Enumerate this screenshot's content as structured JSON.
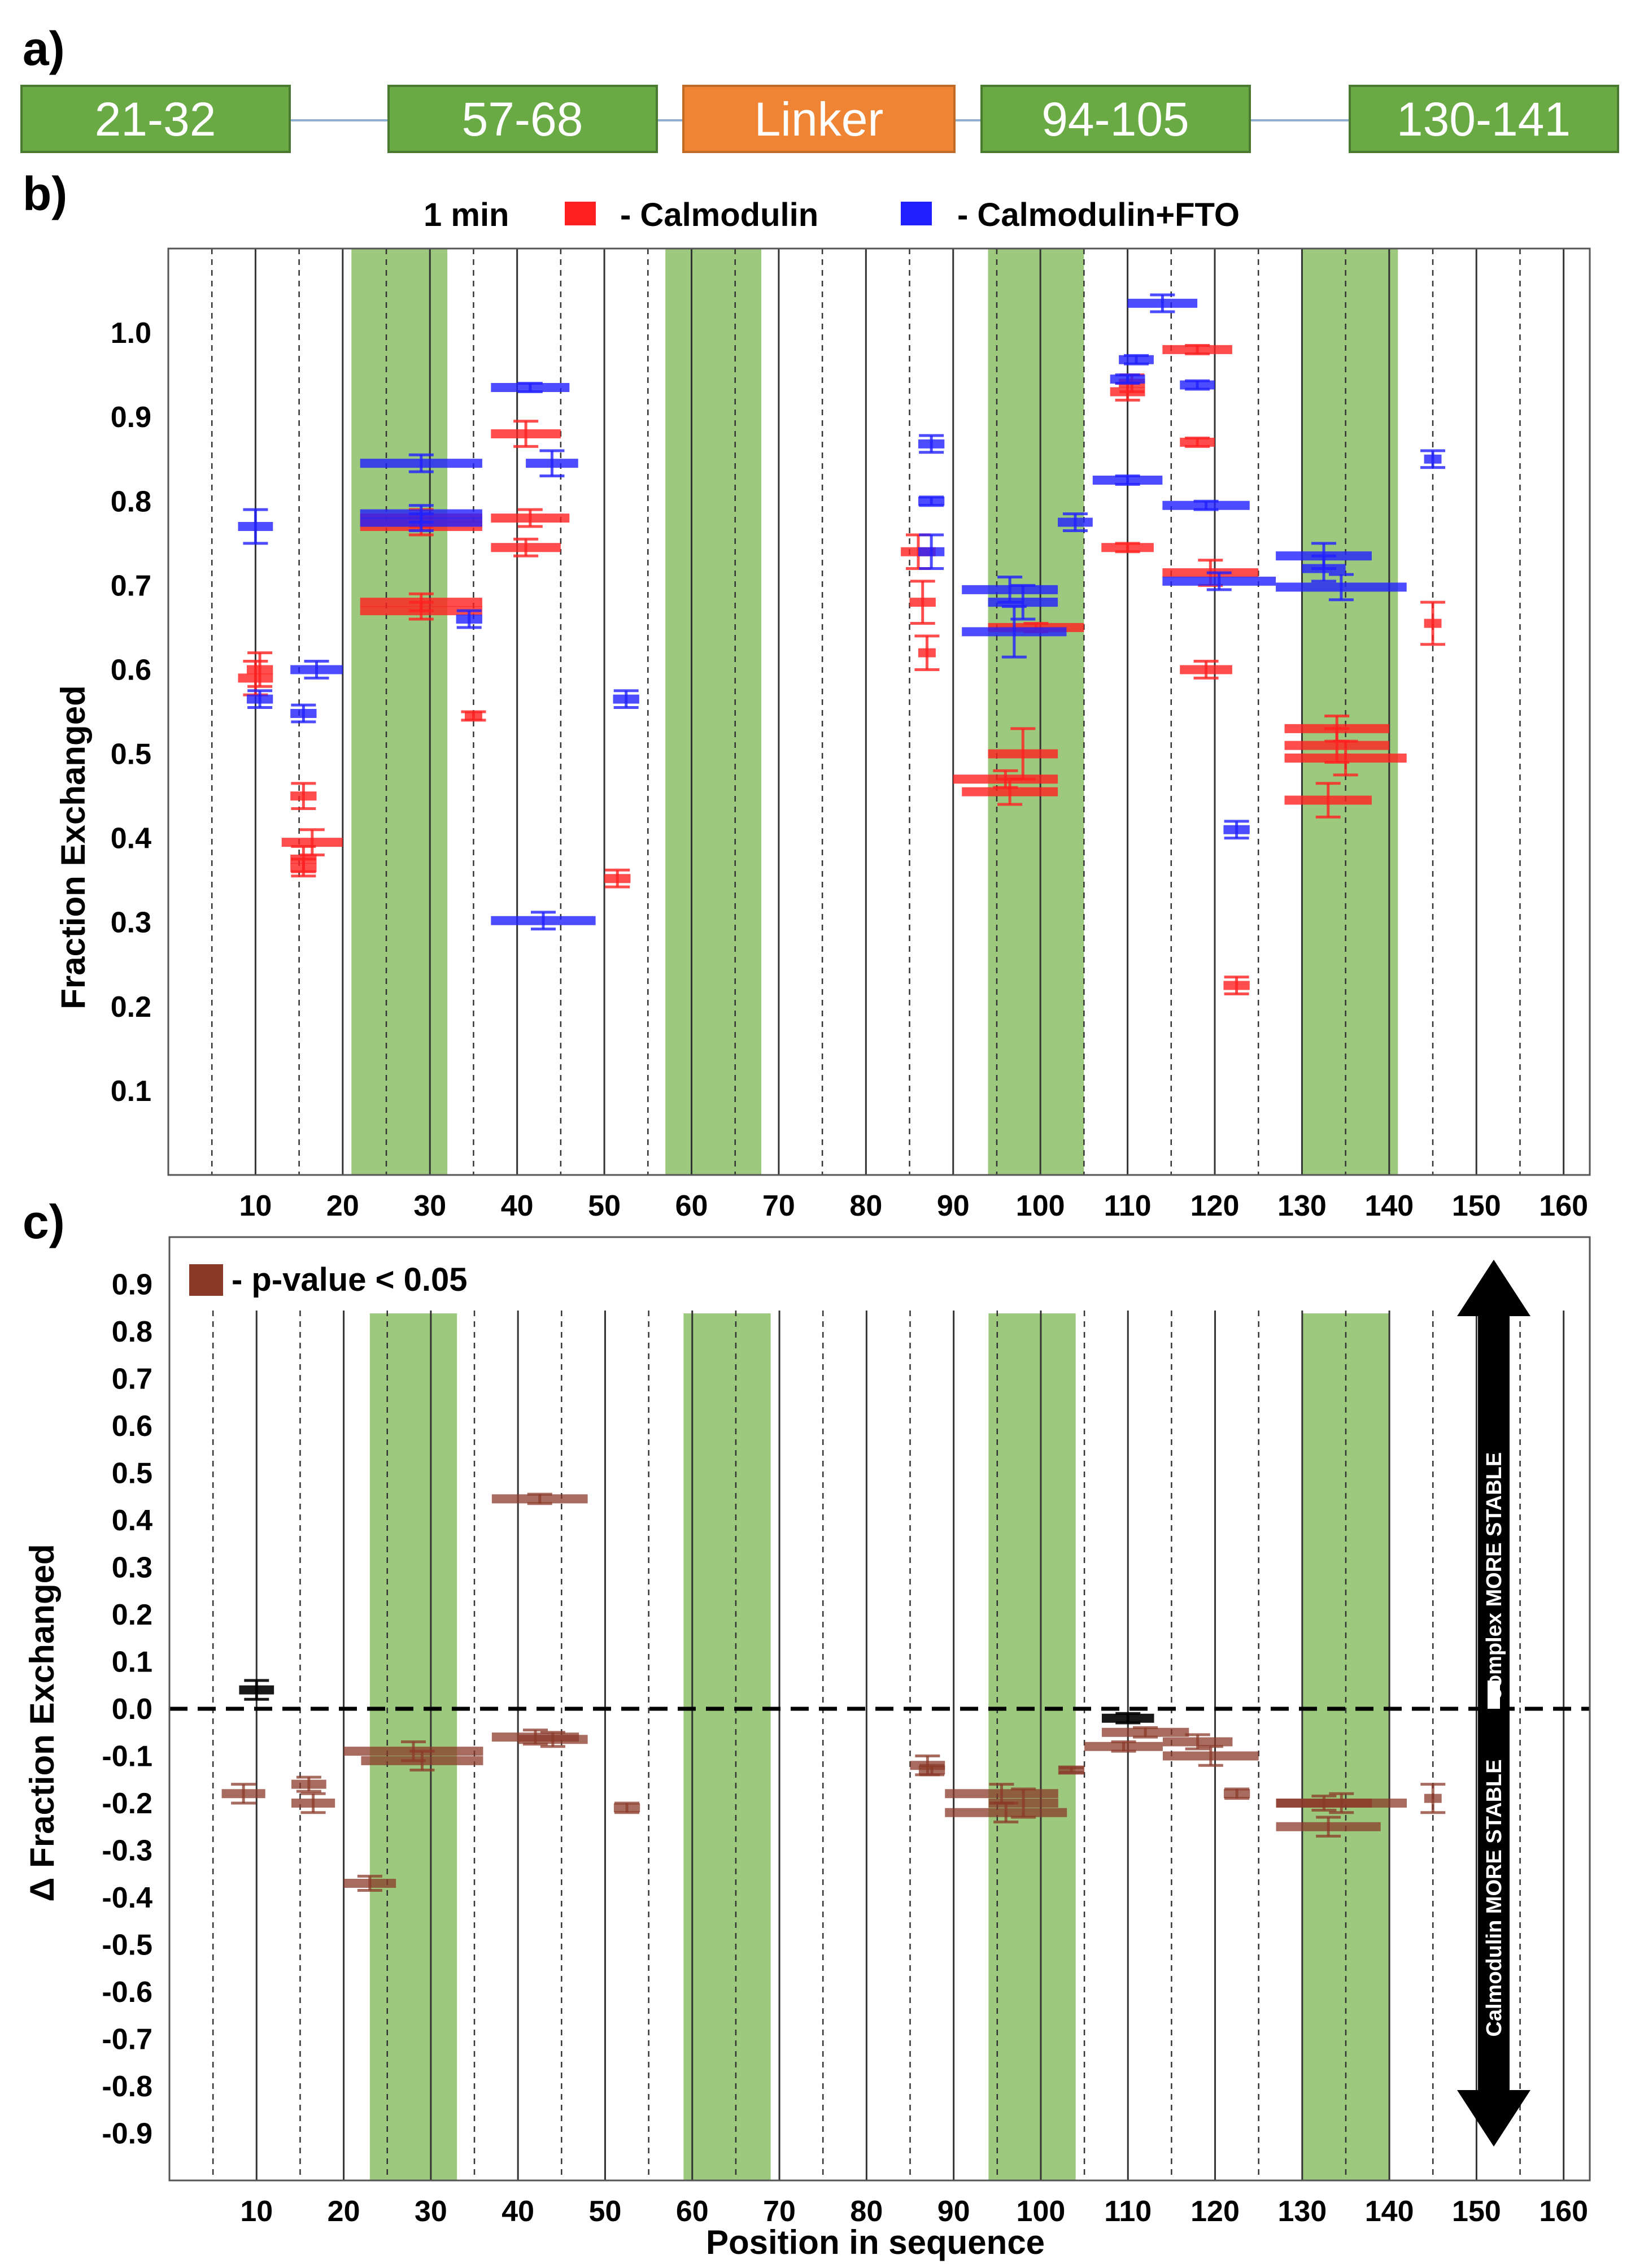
{
  "panel_labels": {
    "a": "a)",
    "b": "b)",
    "c": "c)"
  },
  "domains": [
    {
      "label": "21-32",
      "color": "#6aaa45"
    },
    {
      "label": "57-68",
      "color": "#6aaa45"
    },
    {
      "label": "Linker",
      "color": "#ef8534"
    },
    {
      "label": "94-105",
      "color": "#6aaa45"
    },
    {
      "label": "130-141",
      "color": "#6aaa45"
    }
  ],
  "colors": {
    "calmodulin": "#ff2020",
    "complex": "#2020ff",
    "significant": "#8b3a2a",
    "nonsignificant": "#000000",
    "overlap": "#8b5a2b",
    "highlight": "#9cc97e"
  },
  "chart_data": [
    {
      "id": "b",
      "type": "scatter",
      "title": "1 min",
      "legend": [
        {
          "name": "- Calmodulin",
          "color": "#ff2020"
        },
        {
          "name": "- Calmodulin+FTO",
          "color": "#2020ff"
        }
      ],
      "xlabel": "",
      "ylabel": "Fraction Exchanged",
      "xlim": [
        0,
        163
      ],
      "ylim": [
        0,
        1.1
      ],
      "x_ticks": [
        10,
        20,
        30,
        40,
        50,
        60,
        70,
        80,
        90,
        100,
        110,
        120,
        130,
        140,
        150,
        160
      ],
      "y_ticks": [
        "0.1",
        "0.2",
        "0.3",
        "0.4",
        "0.5",
        "0.6",
        "0.7",
        "0.8",
        "0.9",
        "1.0"
      ],
      "highlight_ranges": [
        [
          21,
          32
        ],
        [
          57,
          68
        ],
        [
          94,
          105
        ],
        [
          130,
          141
        ]
      ],
      "series": [
        {
          "name": "Calmodulin",
          "color": "#ff2020",
          "peptides": [
            {
              "start": 8,
              "end": 12,
              "value": 0.59,
              "err": 0.02
            },
            {
              "start": 9,
              "end": 12,
              "value": 0.6,
              "err": 0.02
            },
            {
              "start": 14,
              "end": 17,
              "value": 0.45,
              "err": 0.015
            },
            {
              "start": 13,
              "end": 20,
              "value": 0.395,
              "err": 0.015
            },
            {
              "start": 14,
              "end": 17,
              "value": 0.375,
              "err": 0.015
            },
            {
              "start": 14,
              "end": 17,
              "value": 0.365,
              "err": 0.01
            },
            {
              "start": 22,
              "end": 36,
              "value": 0.78,
              "err": 0.01
            },
            {
              "start": 22,
              "end": 36,
              "value": 0.77,
              "err": 0.01
            },
            {
              "start": 22,
              "end": 36,
              "value": 0.68,
              "err": 0.01
            },
            {
              "start": 22,
              "end": 36,
              "value": 0.67,
              "err": 0.01
            },
            {
              "start": 34,
              "end": 36,
              "value": 0.545,
              "err": 0.005
            },
            {
              "start": 37,
              "end": 45,
              "value": 0.88,
              "err": 0.015
            },
            {
              "start": 37,
              "end": 46,
              "value": 0.78,
              "err": 0.01
            },
            {
              "start": 37,
              "end": 45,
              "value": 0.745,
              "err": 0.01
            },
            {
              "start": 50,
              "end": 53,
              "value": 0.352,
              "err": 0.01
            },
            {
              "start": 84,
              "end": 88,
              "value": 0.74,
              "err": 0.02
            },
            {
              "start": 85,
              "end": 88,
              "value": 0.68,
              "err": 0.025
            },
            {
              "start": 86,
              "end": 88,
              "value": 0.62,
              "err": 0.02
            },
            {
              "start": 90,
              "end": 102,
              "value": 0.47,
              "err": 0.01
            },
            {
              "start": 91,
              "end": 102,
              "value": 0.455,
              "err": 0.015
            },
            {
              "start": 94,
              "end": 102,
              "value": 0.5,
              "err": 0.03
            },
            {
              "start": 94,
              "end": 105,
              "value": 0.65,
              "err": 0.005
            },
            {
              "start": 107,
              "end": 113,
              "value": 0.745,
              "err": 0.005
            },
            {
              "start": 108,
              "end": 112,
              "value": 0.93,
              "err": 0.01
            },
            {
              "start": 109,
              "end": 112,
              "value": 0.94,
              "err": 0.01
            },
            {
              "start": 114,
              "end": 122,
              "value": 0.98,
              "err": 0.005
            },
            {
              "start": 116,
              "end": 120,
              "value": 0.87,
              "err": 0.005
            },
            {
              "start": 114,
              "end": 125,
              "value": 0.715,
              "err": 0.015
            },
            {
              "start": 116,
              "end": 122,
              "value": 0.6,
              "err": 0.01
            },
            {
              "start": 121,
              "end": 124,
              "value": 0.225,
              "err": 0.01
            },
            {
              "start": 128,
              "end": 140,
              "value": 0.53,
              "err": 0.015
            },
            {
              "start": 128,
              "end": 140,
              "value": 0.51,
              "err": 0.02
            },
            {
              "start": 128,
              "end": 142,
              "value": 0.495,
              "err": 0.02
            },
            {
              "start": 128,
              "end": 138,
              "value": 0.445,
              "err": 0.02
            },
            {
              "start": 144,
              "end": 146,
              "value": 0.655,
              "err": 0.025
            }
          ]
        },
        {
          "name": "Calmodulin+FTO",
          "color": "#2020ff",
          "peptides": [
            {
              "start": 8,
              "end": 12,
              "value": 0.77,
              "err": 0.02
            },
            {
              "start": 9,
              "end": 12,
              "value": 0.565,
              "err": 0.01
            },
            {
              "start": 14,
              "end": 20,
              "value": 0.6,
              "err": 0.01
            },
            {
              "start": 14,
              "end": 17,
              "value": 0.548,
              "err": 0.01
            },
            {
              "start": 22,
              "end": 36,
              "value": 0.845,
              "err": 0.01
            },
            {
              "start": 22,
              "end": 36,
              "value": 0.785,
              "err": 0.01
            },
            {
              "start": 22,
              "end": 36,
              "value": 0.775,
              "err": 0.01
            },
            {
              "start": 33,
              "end": 36,
              "value": 0.66,
              "err": 0.01
            },
            {
              "start": 37,
              "end": 46,
              "value": 0.935,
              "err": 0.005
            },
            {
              "start": 41,
              "end": 47,
              "value": 0.845,
              "err": 0.015
            },
            {
              "start": 37,
              "end": 49,
              "value": 0.302,
              "err": 0.01
            },
            {
              "start": 51,
              "end": 54,
              "value": 0.565,
              "err": 0.01
            },
            {
              "start": 86,
              "end": 89,
              "value": 0.868,
              "err": 0.01
            },
            {
              "start": 86,
              "end": 89,
              "value": 0.8,
              "err": 0.005
            },
            {
              "start": 86,
              "end": 89,
              "value": 0.74,
              "err": 0.02
            },
            {
              "start": 91,
              "end": 102,
              "value": 0.695,
              "err": 0.015
            },
            {
              "start": 94,
              "end": 102,
              "value": 0.68,
              "err": 0.02
            },
            {
              "start": 91,
              "end": 103,
              "value": 0.645,
              "err": 0.03
            },
            {
              "start": 102,
              "end": 106,
              "value": 0.775,
              "err": 0.01
            },
            {
              "start": 106,
              "end": 114,
              "value": 0.825,
              "err": 0.005
            },
            {
              "start": 108,
              "end": 112,
              "value": 0.945,
              "err": 0.005
            },
            {
              "start": 109,
              "end": 113,
              "value": 0.968,
              "err": 0.005
            },
            {
              "start": 110,
              "end": 118,
              "value": 1.035,
              "err": 0.01
            },
            {
              "start": 116,
              "end": 120,
              "value": 0.938,
              "err": 0.005
            },
            {
              "start": 114,
              "end": 124,
              "value": 0.795,
              "err": 0.005
            },
            {
              "start": 114,
              "end": 127,
              "value": 0.705,
              "err": 0.01
            },
            {
              "start": 121,
              "end": 124,
              "value": 0.41,
              "err": 0.01
            },
            {
              "start": 127,
              "end": 138,
              "value": 0.735,
              "err": 0.015
            },
            {
              "start": 127,
              "end": 142,
              "value": 0.698,
              "err": 0.015
            },
            {
              "start": 130,
              "end": 135,
              "value": 0.72,
              "err": 0.015
            },
            {
              "start": 144,
              "end": 146,
              "value": 0.85,
              "err": 0.01
            }
          ]
        }
      ]
    },
    {
      "id": "c",
      "type": "scatter",
      "title": "",
      "legend": [
        {
          "name": "- p-value < 0.05",
          "color": "#8b3a2a"
        }
      ],
      "xlabel": "Position in sequence",
      "ylabel": "Δ Fraction Exchanged",
      "xlim": [
        0,
        163
      ],
      "ylim": [
        -1.0,
        1.0
      ],
      "x_ticks": [
        10,
        20,
        30,
        40,
        50,
        60,
        70,
        80,
        90,
        100,
        110,
        120,
        130,
        140,
        150,
        160
      ],
      "y_ticks": [
        "0.9",
        "0.8",
        "0.7",
        "0.6",
        "0.5",
        "0.4",
        "0.3",
        "0.2",
        "0.1",
        "0.0",
        "-0.1",
        "-0.2",
        "-0.3",
        "-0.4",
        "-0.5",
        "-0.6",
        "-0.7",
        "-0.8",
        "-0.9"
      ],
      "highlight_ranges": [
        [
          23,
          33
        ],
        [
          59,
          69
        ],
        [
          94,
          104
        ],
        [
          130,
          140
        ]
      ],
      "arrow_labels": {
        "up": "complex MORE STABLE",
        "down": "Calmodulin MORE STABLE"
      },
      "peptides": [
        {
          "start": 8,
          "end": 12,
          "value": 0.04,
          "err": 0.02,
          "significant": false
        },
        {
          "start": 6,
          "end": 11,
          "value": -0.18,
          "err": 0.02,
          "significant": true
        },
        {
          "start": 14,
          "end": 18,
          "value": -0.16,
          "err": 0.015,
          "significant": true
        },
        {
          "start": 14,
          "end": 19,
          "value": -0.2,
          "err": 0.02,
          "significant": true
        },
        {
          "start": 20,
          "end": 36,
          "value": -0.09,
          "err": 0.02,
          "significant": true
        },
        {
          "start": 22,
          "end": 36,
          "value": -0.11,
          "err": 0.02,
          "significant": true
        },
        {
          "start": 20,
          "end": 26,
          "value": -0.37,
          "err": 0.015,
          "significant": true
        },
        {
          "start": 37,
          "end": 48,
          "value": 0.445,
          "err": 0.01,
          "significant": true
        },
        {
          "start": 37,
          "end": 47,
          "value": -0.06,
          "err": 0.015,
          "significant": true
        },
        {
          "start": 40,
          "end": 48,
          "value": -0.065,
          "err": 0.015,
          "significant": true
        },
        {
          "start": 51,
          "end": 54,
          "value": -0.21,
          "err": 0.01,
          "significant": true
        },
        {
          "start": 85,
          "end": 89,
          "value": -0.12,
          "err": 0.02,
          "significant": true
        },
        {
          "start": 86,
          "end": 89,
          "value": -0.13,
          "err": 0.01,
          "significant": true
        },
        {
          "start": 89,
          "end": 102,
          "value": -0.18,
          "err": 0.02,
          "significant": true
        },
        {
          "start": 89,
          "end": 103,
          "value": -0.22,
          "err": 0.02,
          "significant": true
        },
        {
          "start": 94,
          "end": 102,
          "value": -0.2,
          "err": 0.03,
          "significant": true
        },
        {
          "start": 102,
          "end": 105,
          "value": -0.13,
          "err": 0.005,
          "significant": true
        },
        {
          "start": 107,
          "end": 113,
          "value": -0.02,
          "err": 0.01,
          "significant": false
        },
        {
          "start": 105,
          "end": 114,
          "value": -0.08,
          "err": 0.01,
          "significant": true
        },
        {
          "start": 107,
          "end": 117,
          "value": -0.05,
          "err": 0.01,
          "significant": true
        },
        {
          "start": 114,
          "end": 122,
          "value": -0.07,
          "err": 0.015,
          "significant": true
        },
        {
          "start": 114,
          "end": 125,
          "value": -0.1,
          "err": 0.02,
          "significant": true
        },
        {
          "start": 121,
          "end": 124,
          "value": -0.18,
          "err": 0.01,
          "significant": true
        },
        {
          "start": 127,
          "end": 138,
          "value": -0.2,
          "err": 0.015,
          "significant": true
        },
        {
          "start": 127,
          "end": 142,
          "value": -0.2,
          "err": 0.02,
          "significant": true
        },
        {
          "start": 127,
          "end": 139,
          "value": -0.25,
          "err": 0.02,
          "significant": true
        },
        {
          "start": 144,
          "end": 146,
          "value": -0.19,
          "err": 0.03,
          "significant": true
        }
      ]
    }
  ]
}
